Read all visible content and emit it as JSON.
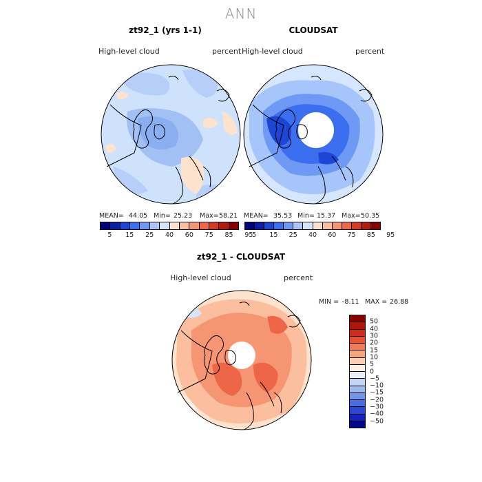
{
  "season": "ANN",
  "panels": [
    {
      "title": "zt92_1 (yrs 1-1)",
      "variable": "High-level cloud",
      "units": "percent",
      "mean_label": "MEAN=",
      "mean": "44.05",
      "min_label": "Min=",
      "min": "25.23",
      "max_label": "Max=",
      "max": "58.21"
    },
    {
      "title": "CLOUDSAT",
      "variable": "High-level cloud",
      "units": "percent",
      "mean_label": "MEAN=",
      "mean": "35.53",
      "min_label": "Min=",
      "min": "15.37",
      "max_label": "Max=",
      "max": "50.35"
    },
    {
      "title": "zt92_1 - CLOUDSAT",
      "variable": "High-level cloud",
      "units": "percent",
      "min_label": "MIN =",
      "min": "-8.11",
      "max_label": "MAX =",
      "max": "26.88"
    }
  ],
  "colorbar_abs": {
    "colors": [
      "#00007a",
      "#0a1ea8",
      "#1e46d6",
      "#3c6ef0",
      "#6e9af5",
      "#a5c5fb",
      "#d6e6ff",
      "#fde3ce",
      "#fbbfa0",
      "#f59572",
      "#ec6647",
      "#d73a23",
      "#b51a10",
      "#8a0000"
    ],
    "tick_labels": [
      "5",
      "15",
      "25",
      "40",
      "60",
      "75",
      "85",
      "95"
    ]
  },
  "colorbar_diff": {
    "colors_top_to_bottom": [
      "#8a0000",
      "#b0150d",
      "#d22b1b",
      "#e8502f",
      "#f37b55",
      "#f8a680",
      "#fccfb2",
      "#fef0e4",
      "#e7eefb",
      "#c4d6f7",
      "#9db9f0",
      "#7297e8",
      "#4a6ee0",
      "#2a46d4",
      "#1520c0",
      "#000a8c"
    ],
    "labels_top_to_bottom": [
      "50",
      "40",
      "30",
      "20",
      "15",
      "10",
      "5",
      "0",
      "−5",
      "−10",
      "−15",
      "−20",
      "−30",
      "−40",
      "−50"
    ]
  }
}
